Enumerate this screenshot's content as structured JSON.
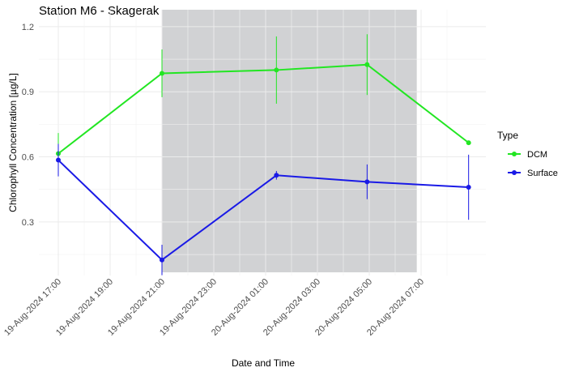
{
  "chart_data": {
    "type": "line",
    "title": "Station M6 - Skagerak",
    "x_label": "Date and Time",
    "y_label": "Chlorophyll Concentration [µg/L]",
    "legend_title": "Type",
    "legend_position": "right",
    "grid": true,
    "x": [
      "2024-08-19T17:00",
      "2024-08-19T21:00",
      "2024-08-20T01:25",
      "2024-08-20T04:55",
      "2024-08-20T08:50"
    ],
    "series": [
      {
        "name": "DCM",
        "color": "#22e622",
        "values": [
          0.615,
          0.985,
          1.0,
          1.025,
          0.665
        ],
        "errors": [
          0.095,
          0.11,
          0.155,
          0.14,
          0.005
        ]
      },
      {
        "name": "Surface",
        "color": "#1a1ae6",
        "values": [
          0.585,
          0.125,
          0.515,
          0.485,
          0.46
        ],
        "errors": [
          0.075,
          0.07,
          0.02,
          0.08,
          0.15
        ]
      }
    ],
    "shade": {
      "x": [
        "2024-08-19T21:00",
        "2024-08-20T06:50"
      ],
      "color": "#c6c7c9"
    },
    "xlim": [
      "2024-08-19T16:15",
      "2024-08-20T09:30"
    ],
    "xticks": [
      {
        "value": "2024-08-19T17:00",
        "label": "19-Aug-2024 17:00"
      },
      {
        "value": "2024-08-19T19:00",
        "label": "19-Aug-2024 19:00"
      },
      {
        "value": "2024-08-19T21:00",
        "label": "19-Aug-2024 21:00"
      },
      {
        "value": "2024-08-19T23:00",
        "label": "19-Aug-2024 23:00"
      },
      {
        "value": "2024-08-20T01:00",
        "label": "20-Aug-2024 01:00"
      },
      {
        "value": "2024-08-20T03:00",
        "label": "20-Aug-2024 03:00"
      },
      {
        "value": "2024-08-20T05:00",
        "label": "20-Aug-2024 05:00"
      },
      {
        "value": "2024-08-20T07:00",
        "label": "20-Aug-2024 07:00"
      }
    ],
    "ylim": [
      0.053,
      1.278
    ],
    "yticks": [
      0.3,
      0.6,
      0.9,
      1.2
    ]
  }
}
